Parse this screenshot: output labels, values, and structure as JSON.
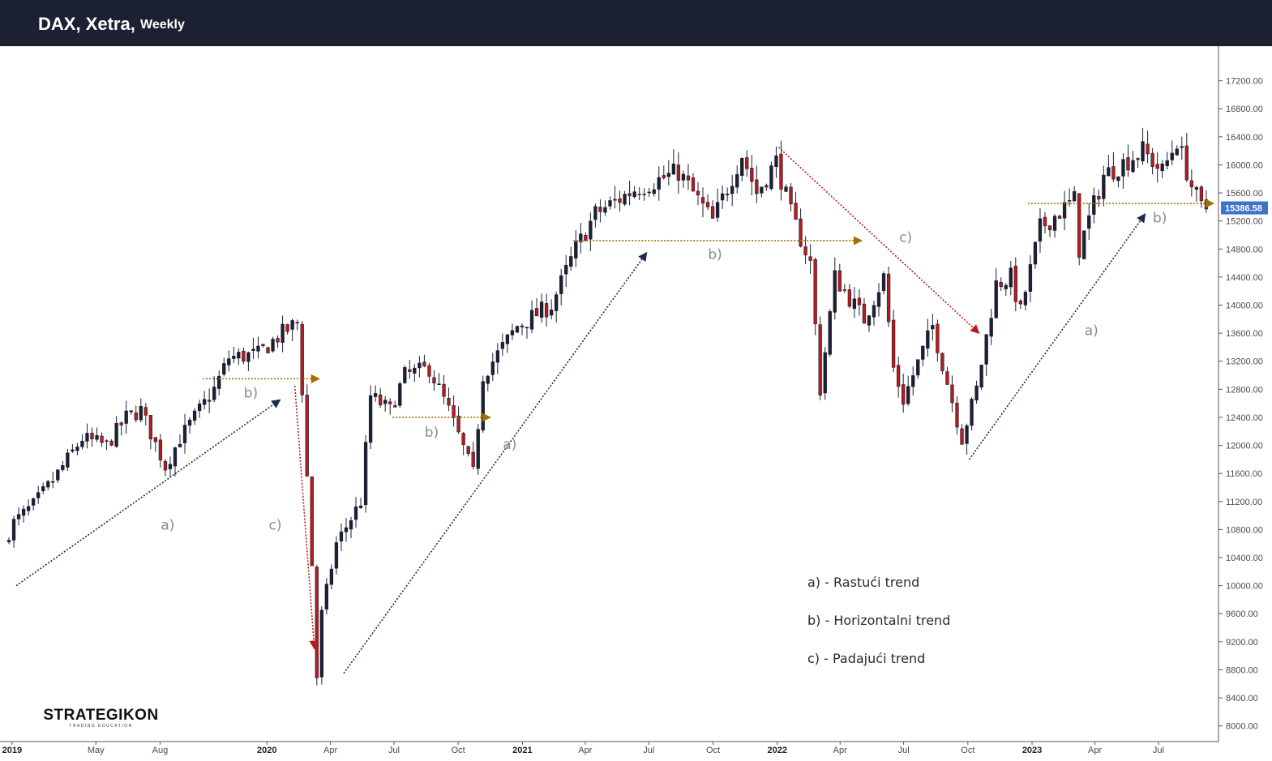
{
  "header": {
    "symbol": "DAX, Xetra,",
    "timeframe": "Weekly"
  },
  "logo": {
    "name": "STRATEGIKON",
    "tagline": "TRADING EDUCATION"
  },
  "legend": [
    "a) - Rastući trend",
    "b) - Horizontalni trend",
    "c) - Padajući trend"
  ],
  "colors": {
    "bull": "#1c2033",
    "bear": "#b71c1c",
    "uptrend": "#1c2a4e",
    "downtrend": "#b71c1c",
    "horizontal": "#a07000",
    "price_tag": "#3d73c8"
  },
  "chart_data": {
    "type": "candlestick",
    "instrument": "DAX, Xetra",
    "interval": "Weekly",
    "ylim": [
      7800,
      17600
    ],
    "y_ticks": [
      "8000.00",
      "8400.00",
      "8800.00",
      "9200.00",
      "9600.00",
      "10000.00",
      "10400.00",
      "10800.00",
      "11200.00",
      "11600.00",
      "12000.00",
      "12400.00",
      "12800.00",
      "13200.00",
      "13600.00",
      "14000.00",
      "14400.00",
      "14800.00",
      "15200.00",
      "15600.00",
      "16000.00",
      "16400.00",
      "16800.00",
      "17200.00"
    ],
    "x_ticks": [
      {
        "label": "2019",
        "date": "2019-01-01",
        "year": true
      },
      {
        "label": "May",
        "date": "2019-05-01"
      },
      {
        "label": "Aug",
        "date": "2019-08-01"
      },
      {
        "label": "2020",
        "date": "2020-01-01",
        "year": true
      },
      {
        "label": "Apr",
        "date": "2020-04-01"
      },
      {
        "label": "Jul",
        "date": "2020-07-01"
      },
      {
        "label": "Oct",
        "date": "2020-10-01"
      },
      {
        "label": "2021",
        "date": "2021-01-01",
        "year": true
      },
      {
        "label": "Apr",
        "date": "2021-04-01"
      },
      {
        "label": "Jul",
        "date": "2021-07-01"
      },
      {
        "label": "Oct",
        "date": "2021-10-01"
      },
      {
        "label": "2022",
        "date": "2022-01-01",
        "year": true
      },
      {
        "label": "Apr",
        "date": "2022-04-01"
      },
      {
        "label": "Jul",
        "date": "2022-07-01"
      },
      {
        "label": "Oct",
        "date": "2022-10-01"
      },
      {
        "label": "2023",
        "date": "2023-01-01",
        "year": true
      },
      {
        "label": "Apr",
        "date": "2023-04-01"
      },
      {
        "label": "Jul",
        "date": "2023-07-01"
      }
    ],
    "last_price": "15386.58",
    "last_price_value": 15386.58,
    "price_path": [
      {
        "date": "2018-12-24",
        "close": 10600
      },
      {
        "date": "2019-01-07",
        "close": 10900
      },
      {
        "date": "2019-02-04",
        "close": 11150
      },
      {
        "date": "2019-03-04",
        "close": 11500
      },
      {
        "date": "2019-04-15",
        "close": 12100
      },
      {
        "date": "2019-05-20",
        "close": 12000
      },
      {
        "date": "2019-06-17",
        "close": 12400
      },
      {
        "date": "2019-07-08",
        "close": 12500
      },
      {
        "date": "2019-08-12",
        "close": 11700
      },
      {
        "date": "2019-09-02",
        "close": 12100
      },
      {
        "date": "2019-10-21",
        "close": 12800
      },
      {
        "date": "2019-11-11",
        "close": 13250
      },
      {
        "date": "2019-12-23",
        "close": 13300
      },
      {
        "date": "2020-01-20",
        "close": 13550
      },
      {
        "date": "2020-02-17",
        "close": 13750
      },
      {
        "date": "2020-02-24",
        "close": 12800
      },
      {
        "date": "2020-03-09",
        "close": 10300
      },
      {
        "date": "2020-03-16",
        "close": 8700
      },
      {
        "date": "2020-03-23",
        "close": 9600
      },
      {
        "date": "2020-04-13",
        "close": 10600
      },
      {
        "date": "2020-05-18",
        "close": 11200
      },
      {
        "date": "2020-06-01",
        "close": 12700
      },
      {
        "date": "2020-06-29",
        "close": 12500
      },
      {
        "date": "2020-07-20",
        "close": 13000
      },
      {
        "date": "2020-08-24",
        "close": 13100
      },
      {
        "date": "2020-09-21",
        "close": 12500
      },
      {
        "date": "2020-10-26",
        "close": 11600
      },
      {
        "date": "2020-11-09",
        "close": 13000
      },
      {
        "date": "2020-12-28",
        "close": 13700
      },
      {
        "date": "2021-02-15",
        "close": 14000
      },
      {
        "date": "2021-03-22",
        "close": 14800
      },
      {
        "date": "2021-04-19",
        "close": 15300
      },
      {
        "date": "2021-06-14",
        "close": 15650
      },
      {
        "date": "2021-08-16",
        "close": 15900
      },
      {
        "date": "2021-10-04",
        "close": 15200
      },
      {
        "date": "2021-11-15",
        "close": 16150
      },
      {
        "date": "2021-12-06",
        "close": 15600
      },
      {
        "date": "2022-01-03",
        "close": 16050
      },
      {
        "date": "2022-01-24",
        "close": 15300
      },
      {
        "date": "2022-02-21",
        "close": 14600
      },
      {
        "date": "2022-03-07",
        "close": 12800
      },
      {
        "date": "2022-03-28",
        "close": 14400
      },
      {
        "date": "2022-05-09",
        "close": 13800
      },
      {
        "date": "2022-06-06",
        "close": 14400
      },
      {
        "date": "2022-06-20",
        "close": 13100
      },
      {
        "date": "2022-07-04",
        "close": 12650
      },
      {
        "date": "2022-08-15",
        "close": 13700
      },
      {
        "date": "2022-09-05",
        "close": 12900
      },
      {
        "date": "2022-09-26",
        "close": 12100
      },
      {
        "date": "2022-10-17",
        "close": 12800
      },
      {
        "date": "2022-11-14",
        "close": 14300
      },
      {
        "date": "2022-12-05",
        "close": 14400
      },
      {
        "date": "2022-12-19",
        "close": 13900
      },
      {
        "date": "2023-01-16",
        "close": 15100
      },
      {
        "date": "2023-03-06",
        "close": 15500
      },
      {
        "date": "2023-03-13",
        "close": 14800
      },
      {
        "date": "2023-04-17",
        "close": 15850
      },
      {
        "date": "2023-06-12",
        "close": 16200
      },
      {
        "date": "2023-07-10",
        "close": 15900
      },
      {
        "date": "2023-07-31",
        "close": 16350
      },
      {
        "date": "2023-08-21",
        "close": 15700
      },
      {
        "date": "2023-09-04",
        "close": 15386.58
      }
    ],
    "annotations": [
      {
        "label": "a)",
        "kind": "uptrend",
        "from": {
          "date": "2019-01-07",
          "price": 10000
        },
        "to": {
          "date": "2020-01-20",
          "price": 12650
        },
        "label_at": {
          "date": "2019-08-12",
          "price": 10800
        }
      },
      {
        "label": "b)",
        "kind": "horizontal",
        "from": {
          "date": "2019-10-01",
          "price": 12950
        },
        "to": {
          "date": "2020-03-16",
          "price": 12950
        },
        "label_at": {
          "date": "2019-12-09",
          "price": 12680
        }
      },
      {
        "label": "c)",
        "kind": "downtrend",
        "from": {
          "date": "2020-02-10",
          "price": 12850
        },
        "to": {
          "date": "2020-03-09",
          "price": 9100
        },
        "label_at": {
          "date": "2020-01-13",
          "price": 10800
        }
      },
      {
        "label": "b)",
        "kind": "horizontal",
        "from": {
          "date": "2020-06-29",
          "price": 12400
        },
        "to": {
          "date": "2020-11-16",
          "price": 12400
        },
        "label_at": {
          "date": "2020-08-24",
          "price": 12120
        }
      },
      {
        "label": "a)",
        "kind": "uptrend",
        "from": {
          "date": "2020-04-20",
          "price": 8750
        },
        "to": {
          "date": "2021-06-28",
          "price": 14750
        },
        "label_at": {
          "date": "2020-12-14",
          "price": 11950
        }
      },
      {
        "label": "b)",
        "kind": "horizontal",
        "from": {
          "date": "2021-03-15",
          "price": 14920
        },
        "to": {
          "date": "2022-05-02",
          "price": 14920
        },
        "label_at": {
          "date": "2021-10-04",
          "price": 14660
        }
      },
      {
        "label": "c)",
        "kind": "downtrend",
        "from": {
          "date": "2022-01-03",
          "price": 16250
        },
        "to": {
          "date": "2022-10-17",
          "price": 13600
        },
        "label_at": {
          "date": "2022-07-04",
          "price": 14900
        }
      },
      {
        "label": "a)",
        "kind": "uptrend",
        "from": {
          "date": "2022-10-03",
          "price": 11800
        },
        "to": {
          "date": "2023-06-12",
          "price": 15300
        },
        "label_at": {
          "date": "2023-03-27",
          "price": 13570
        }
      },
      {
        "label": "b)",
        "kind": "horizontal",
        "from": {
          "date": "2022-12-26",
          "price": 15450
        },
        "to": {
          "date": "2023-09-18",
          "price": 15450
        },
        "label_at": {
          "date": "2023-07-03",
          "price": 15180
        }
      }
    ]
  }
}
